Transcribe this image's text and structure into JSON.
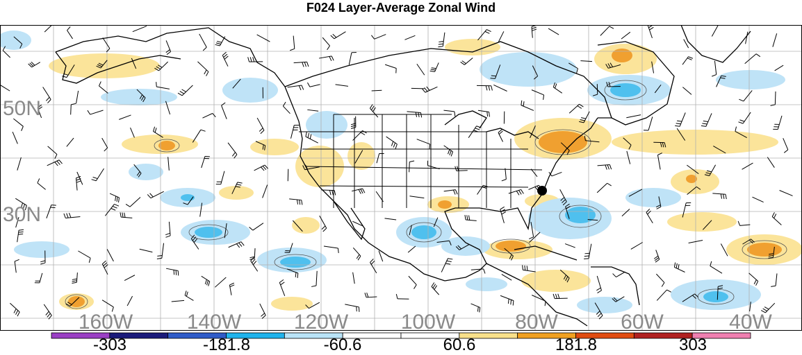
{
  "title": "F024 Layer-Average Zonal Wind",
  "lat_labels": [
    "50N",
    "30N"
  ],
  "lon_labels": [
    "160W",
    "140W",
    "120W",
    "100W",
    "80W",
    "60W",
    "40W"
  ],
  "colorbar": {
    "labels": [
      "-303",
      "-181.8",
      "-60.6",
      "60.6",
      "181.8",
      "303"
    ],
    "colors": [
      "#9a3fc4",
      "#1a1a7a",
      "#2f5bc8",
      "#1fb3ec",
      "#b9e3f7",
      "#ffffff",
      "#ffffff",
      "#f8e08a",
      "#f0a020",
      "#e04b10",
      "#b02020",
      "#ef7fb0"
    ]
  },
  "colors": {
    "light_blue": "#bfe3f7",
    "medium_blue": "#4fc0ee",
    "light_yellow": "#fbe49a",
    "orange": "#f0a030",
    "grid": "#b0b0b0",
    "coast": "#000000"
  },
  "markers": [
    {
      "name": "point",
      "color": "#000000"
    }
  ]
}
